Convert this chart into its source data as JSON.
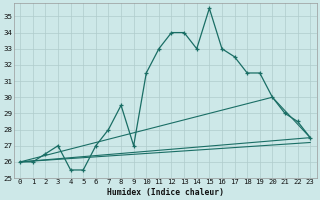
{
  "xlabel": "Humidex (Indice chaleur)",
  "bg_color": "#cde8e8",
  "grid_color": "#b0cccc",
  "line_color": "#1a6e65",
  "xlim": [
    -0.5,
    23.5
  ],
  "ylim": [
    25,
    35.8
  ],
  "xticks": [
    0,
    1,
    2,
    3,
    4,
    5,
    6,
    7,
    8,
    9,
    10,
    11,
    12,
    13,
    14,
    15,
    16,
    17,
    18,
    19,
    20,
    21,
    22,
    23
  ],
  "yticks": [
    25,
    26,
    27,
    28,
    29,
    30,
    31,
    32,
    33,
    34,
    35
  ],
  "series1_x": [
    0,
    1,
    2,
    3,
    4,
    5,
    6,
    7,
    8,
    9,
    10,
    11,
    12,
    13,
    14,
    15,
    16,
    17,
    18,
    19,
    20,
    21,
    22,
    23
  ],
  "series1_y": [
    26.0,
    26.0,
    26.5,
    27.0,
    25.5,
    25.5,
    27.0,
    28.0,
    29.5,
    27.0,
    31.5,
    33.0,
    34.0,
    34.0,
    33.0,
    35.5,
    33.0,
    32.5,
    31.5,
    31.5,
    30.0,
    29.0,
    28.5,
    27.5
  ],
  "series2_x": [
    0,
    23
  ],
  "series2_y": [
    26.0,
    27.5
  ],
  "series3_x": [
    0,
    20,
    23
  ],
  "series3_y": [
    26.0,
    30.0,
    27.5
  ],
  "series4_x": [
    0,
    23
  ],
  "series4_y": [
    26.0,
    27.2
  ],
  "xlabel_fontsize": 5.8,
  "tick_fontsize": 5.2
}
